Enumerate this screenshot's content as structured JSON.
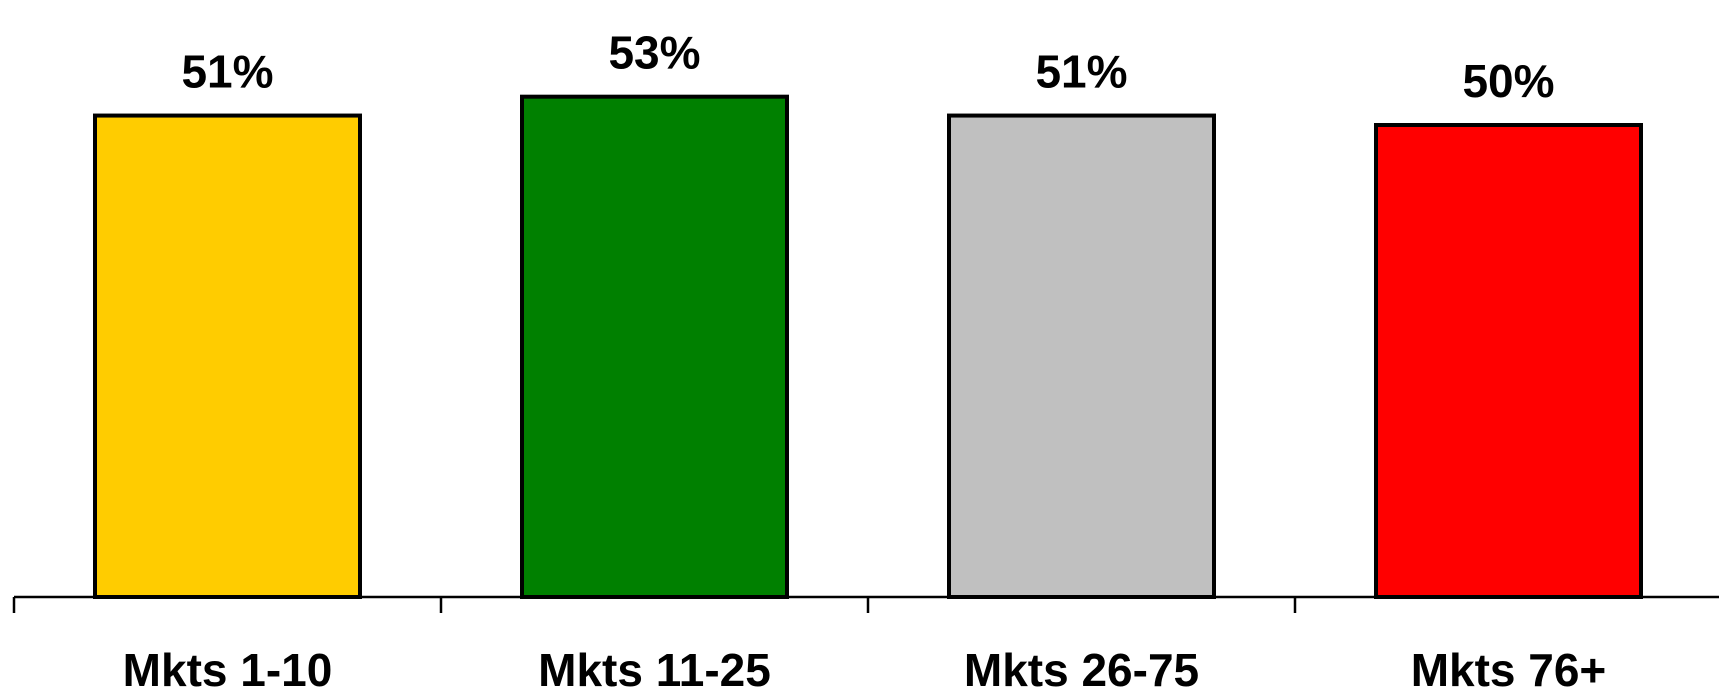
{
  "chart_data": {
    "type": "bar",
    "categories": [
      "Mkts 1-10",
      "Mkts 11-25",
      "Mkts 26-75",
      "Mkts 76+"
    ],
    "values": [
      51,
      53,
      51,
      50
    ],
    "data_labels": [
      "51%",
      "53%",
      "51%",
      "50%"
    ],
    "colors": [
      "#FFCC00",
      "#008000",
      "#C0C0C0",
      "#FF0000"
    ],
    "title": "",
    "xlabel": "",
    "ylabel": "",
    "ylim": [
      0,
      60
    ],
    "grid": false,
    "legend": "none"
  }
}
